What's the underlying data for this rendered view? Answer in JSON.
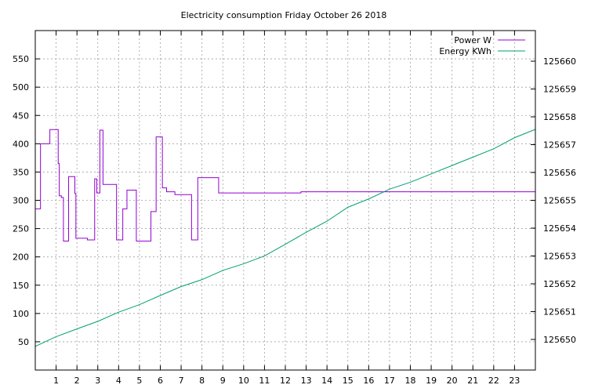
{
  "chart_data": {
    "type": "line",
    "title": "Electricity consumption Friday October 26 2018",
    "xlabel": "",
    "ylabel": "",
    "y2label": "",
    "xlim": [
      0,
      24
    ],
    "ylim": [
      0,
      600
    ],
    "y2lim": [
      125648.9,
      125661.1
    ],
    "x_ticks": [
      "1",
      "2",
      "3",
      "4",
      "5",
      "6",
      "7",
      "8",
      "9",
      "10",
      "11",
      "12",
      "13",
      "14",
      "15",
      "16",
      "17",
      "18",
      "19",
      "20",
      "21",
      "22",
      "23"
    ],
    "y_ticks": [
      50,
      100,
      150,
      200,
      250,
      300,
      350,
      400,
      450,
      500,
      550
    ],
    "y2_ticks": [
      125650,
      125651,
      125652,
      125653,
      125654,
      125655,
      125656,
      125657,
      125658,
      125659,
      125660
    ],
    "grid": true,
    "legend_position": "top-right",
    "series": [
      {
        "name": "Power W",
        "axis": "left",
        "step": true,
        "color": "#9400d3",
        "x": [
          0,
          0.25,
          0.3,
          0.7,
          1.1,
          1.15,
          1.25,
          1.35,
          1.6,
          1.9,
          1.95,
          2.4,
          2.5,
          2.8,
          2.85,
          2.95,
          3.1,
          3.25,
          3.8,
          3.9,
          4.1,
          4.2,
          4.4,
          4.5,
          4.85,
          5.3,
          5.55,
          5.6,
          5.65,
          5.8,
          6.1,
          6.2,
          6.3,
          6.35,
          6.7,
          6.75,
          7.5,
          7.55,
          7.8,
          8.5,
          8.8,
          8.95,
          9.15,
          9.3,
          9.95,
          10.5,
          10.55,
          10.7,
          11.05,
          11.1,
          11.15,
          11.35,
          11.75,
          11.9,
          12.45,
          12.5,
          12.75,
          12.95,
          13.4,
          13.7,
          13.75,
          13.8,
          14.15,
          14.8,
          14.9,
          15.0,
          15.2,
          15.5,
          15.6,
          15.95,
          16.4,
          16.5,
          16.6,
          16.9,
          17.8,
          18.0,
          18.1,
          18.3,
          18.8,
          19.0,
          19.05,
          19.5,
          19.8,
          19.9,
          20.3,
          20.5,
          20.6,
          20.95,
          21.05,
          21.2,
          21.85,
          21.9,
          21.95,
          22.5,
          22.6,
          22.65,
          23.15,
          23.25,
          23.4,
          23.7,
          23.8,
          24
        ],
        "y": [
          285,
          400,
          400,
          425,
          365,
          308,
          305,
          228,
          342,
          312,
          233,
          233,
          230,
          230,
          338,
          313,
          424,
          328,
          328,
          230,
          230,
          285,
          318,
          318,
          228,
          228,
          280,
          280,
          280,
          412,
          322,
          322,
          315,
          315,
          310,
          310,
          230,
          230,
          340,
          340,
          313,
          313,
          313,
          313,
          313,
          313,
          313,
          313,
          313,
          313,
          313,
          313,
          313,
          313,
          313,
          313,
          315,
          315,
          315,
          315,
          315,
          315,
          315,
          315,
          315,
          315,
          315,
          315,
          315,
          315,
          315,
          315,
          315,
          315,
          315,
          315,
          315,
          315,
          315,
          315,
          315,
          315,
          315,
          315,
          315,
          315,
          315,
          315,
          315,
          315,
          315,
          315,
          315,
          315,
          315,
          315,
          315,
          315,
          315,
          315,
          315,
          315
        ]
      },
      {
        "name": "Energy KWh",
        "axis": "right",
        "step": false,
        "color": "#009e73",
        "x": [
          0,
          1,
          2,
          3,
          4,
          5,
          6,
          7,
          8,
          9,
          10,
          11,
          12,
          13,
          14,
          15,
          16,
          17,
          18,
          19,
          20,
          21,
          22,
          23,
          24
        ],
        "y": [
          125649.75,
          125650.1,
          125650.38,
          125650.65,
          125650.98,
          125651.25,
          125651.58,
          125651.9,
          125652.15,
          125652.48,
          125652.72,
          125653.0,
          125653.42,
          125653.85,
          125654.25,
          125654.75,
          125655.05,
          125655.4,
          125655.65,
          125655.95,
          125656.25,
          125656.55,
          125656.85,
          125657.25,
          125657.55
        ]
      }
    ]
  }
}
